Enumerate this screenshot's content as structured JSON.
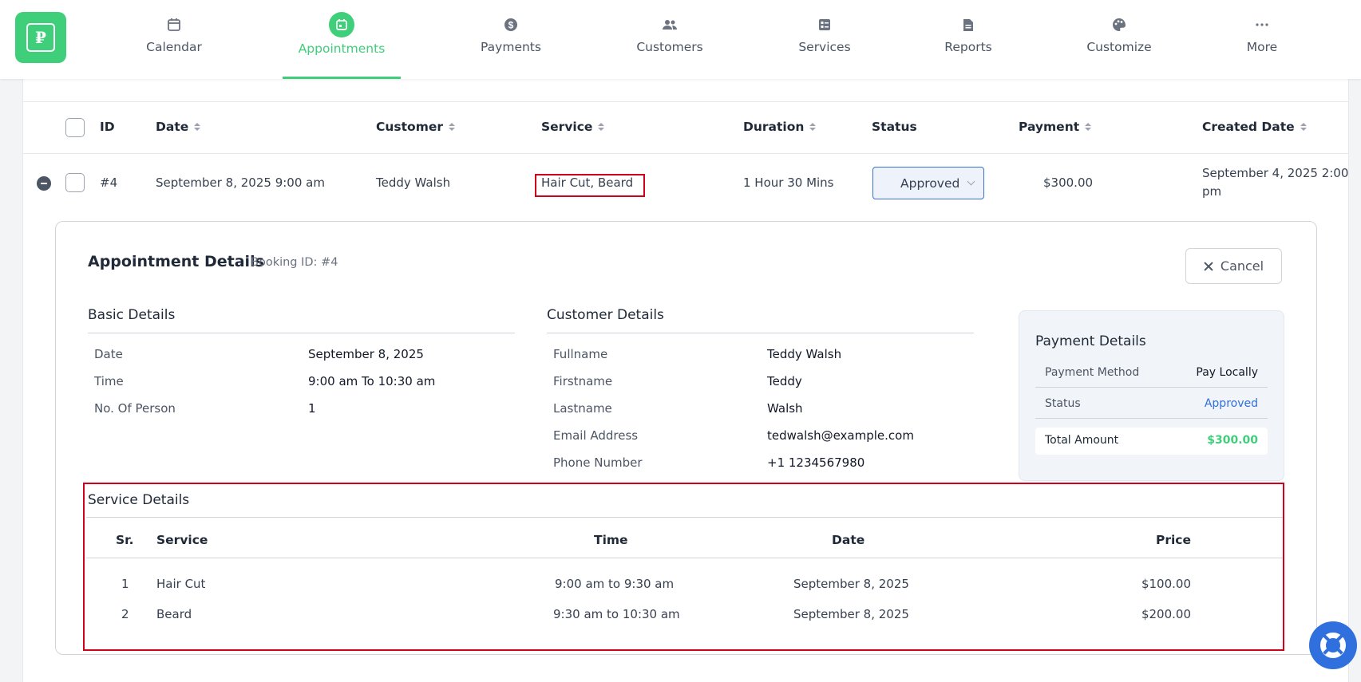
{
  "nav": {
    "items": [
      {
        "label": "Calendar",
        "icon": "calendar-icon"
      },
      {
        "label": "Appointments",
        "icon": "appointments-icon",
        "active": true
      },
      {
        "label": "Payments",
        "icon": "dollar-icon"
      },
      {
        "label": "Customers",
        "icon": "users-icon"
      },
      {
        "label": "Services",
        "icon": "services-icon"
      },
      {
        "label": "Reports",
        "icon": "report-icon"
      },
      {
        "label": "Customize",
        "icon": "palette-icon"
      },
      {
        "label": "More",
        "icon": "more-icon"
      }
    ],
    "accent_color": "#3fce7a"
  },
  "table": {
    "headers": {
      "id": "ID",
      "date": "Date",
      "customer": "Customer",
      "service": "Service",
      "duration": "Duration",
      "status": "Status",
      "payment": "Payment",
      "created_date": "Created Date"
    },
    "row": {
      "id": "#4",
      "date": "September 8, 2025 9:00 am",
      "customer": "Teddy Walsh",
      "service": "Hair Cut, Beard",
      "duration": "1 Hour 30 Mins",
      "status": "Approved",
      "payment": "$300.00",
      "created_line1": "September 4, 2025 2:00",
      "created_line2": "pm"
    }
  },
  "details": {
    "title": "Appointment Details",
    "booking_id": "Booking ID: #4",
    "cancel_label": "Cancel",
    "basic": {
      "title": "Basic Details",
      "rows": [
        {
          "label": "Date",
          "value": "September 8, 2025"
        },
        {
          "label": "Time",
          "value": "9:00 am To 10:30 am"
        },
        {
          "label": "No. Of Person",
          "value": "1"
        }
      ]
    },
    "customer": {
      "title": "Customer Details",
      "rows": [
        {
          "label": "Fullname",
          "value": "Teddy Walsh"
        },
        {
          "label": "Firstname",
          "value": "Teddy"
        },
        {
          "label": "Lastname",
          "value": "Walsh"
        },
        {
          "label": "Email Address",
          "value": "tedwalsh@example.com"
        },
        {
          "label": "Phone Number",
          "value": "+1 1234567980"
        }
      ]
    },
    "payment": {
      "title": "Payment Details",
      "method_label": "Payment Method",
      "method_value": "Pay Locally",
      "status_label": "Status",
      "status_value": "Approved",
      "total_label": "Total Amount",
      "total_value": "$300.00"
    },
    "services": {
      "title": "Service Details",
      "headers": {
        "sr": "Sr.",
        "service": "Service",
        "time": "Time",
        "date": "Date",
        "price": "Price"
      },
      "rows": [
        {
          "sr": "1",
          "service": "Hair Cut",
          "time": "9:00 am to 9:30 am",
          "date": "September 8, 2025",
          "price": "$100.00"
        },
        {
          "sr": "2",
          "service": "Beard",
          "time": "9:30 am to 10:30 am",
          "date": "September 8, 2025",
          "price": "$200.00"
        }
      ]
    }
  }
}
